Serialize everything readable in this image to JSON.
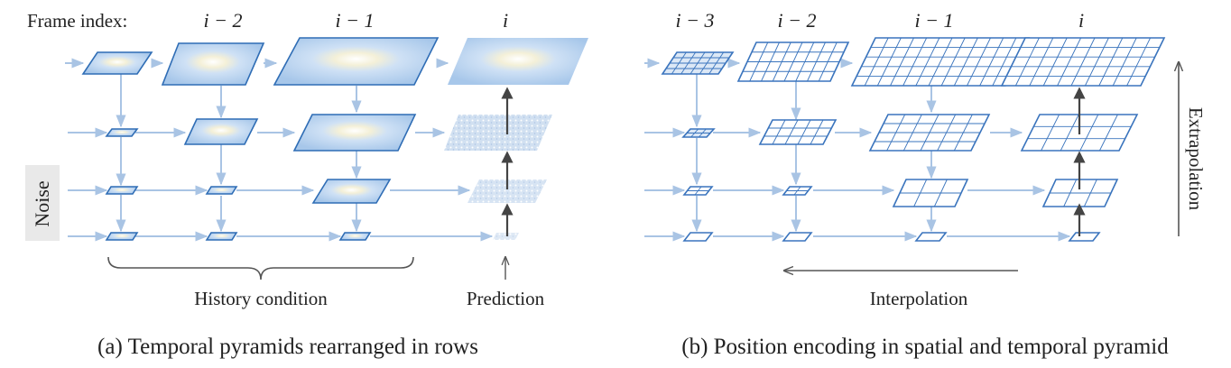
{
  "panel_a": {
    "frame_index_label": "Frame index:",
    "column_labels": [
      "i − 2",
      "i − 1",
      "i"
    ],
    "noise_label": "Noise",
    "history_label": "History condition",
    "prediction_label": "Prediction",
    "caption": "(a) Temporal pyramids rearranged in rows"
  },
  "panel_b": {
    "column_labels": [
      "i − 3",
      "i − 2",
      "i − 1",
      "i"
    ],
    "extrapolation_label": "Extrapolation",
    "interpolation_label": "Interpolation",
    "caption": "(b) Position encoding in spatial and temporal pyramid"
  },
  "colors": {
    "frame_fill": "#dde9f7",
    "frame_stroke": "#2f6db5",
    "flow_arrow": "#a9c4e4",
    "dark_arrow": "#444444",
    "noise_bar": "#e9e9e9",
    "grid_fill": "#ffffff",
    "grid_stroke": "#3a74bd"
  },
  "icons": {
    "frame_thumbnail": "daisy-flower-image",
    "grid_latent": "patch-grid"
  }
}
